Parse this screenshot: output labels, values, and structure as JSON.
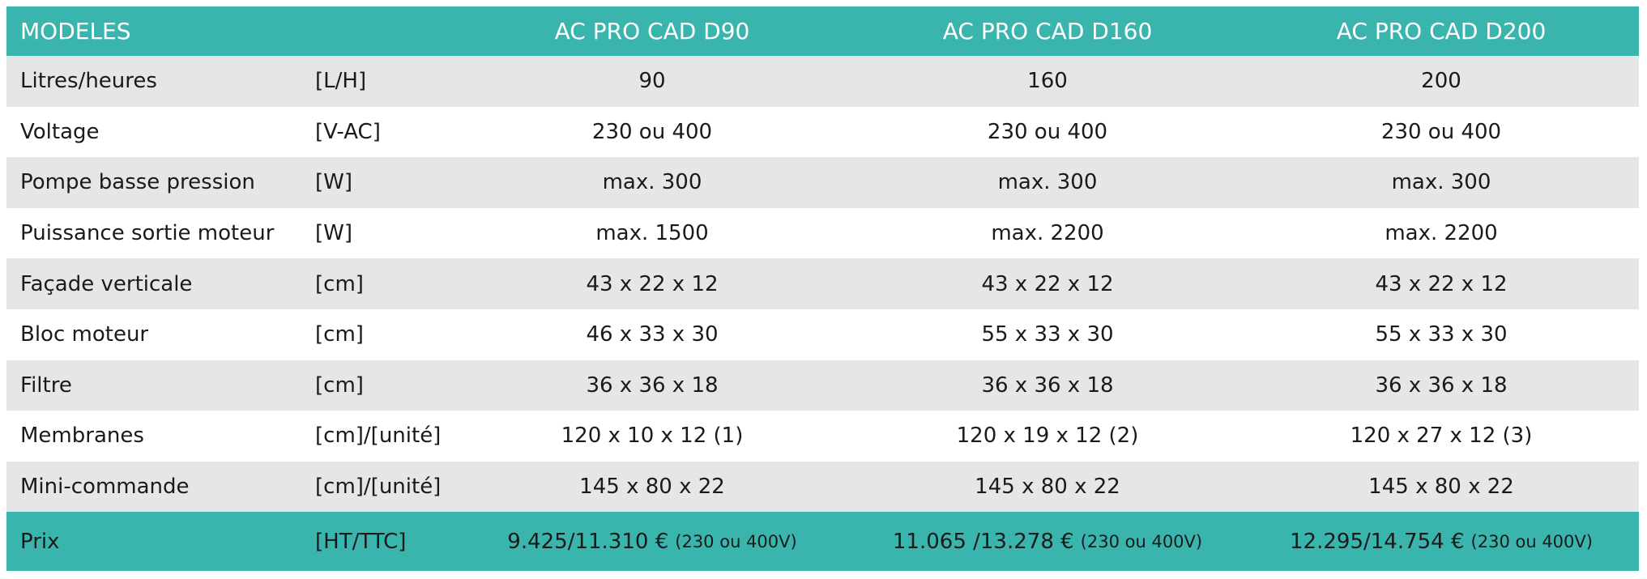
{
  "table": {
    "header": [
      "MODELES",
      "AC PRO CAD D90",
      "AC PRO CAD D160",
      "AC PRO CAD D200"
    ],
    "rows": [
      [
        "Litres/heures",
        "[L/H]",
        "90",
        "160",
        "200"
      ],
      [
        "Voltage",
        "[V-AC]",
        "230 ou 400",
        "230 ou 400",
        "230 ou 400"
      ],
      [
        "Pompe basse pression",
        "[W]",
        "max. 300",
        "max. 300",
        "max. 300"
      ],
      [
        "Puissance sortie moteur",
        "[W]",
        "max. 1500",
        "max. 2200",
        "max. 2200"
      ],
      [
        "Façade verticale",
        "[cm]",
        "43 x 22 x 12",
        "43 x 22 x 12",
        "43 x 22 x 12"
      ],
      [
        "Bloc moteur",
        "[cm]",
        "46 x 33 x 30",
        "55 x 33 x 30",
        "55 x 33 x 30"
      ],
      [
        "Filtre",
        "[cm]",
        "36 x 36 x 18",
        "36 x 36 x 18",
        "36 x 36 x 18"
      ],
      [
        "Membranes",
        "[cm]/[unité]",
        "120 x 10 x 12 (1)",
        "120 x 19 x 12 (2)",
        "120 x 27 x 12 (3)"
      ],
      [
        "Mini-commande",
        "[cm]/[unité]",
        "145 x 80 x 22",
        "145 x 80 x 22",
        "145 x 80 x 22"
      ]
    ],
    "price_row": {
      "label": "Prix",
      "unit": "[HT/TTC]",
      "prices": [
        {
          "price": "9.425/11.310 €",
          "note": "(230 ou 400V)"
        },
        {
          "price": "11.065 /13.278 €",
          "note": "(230 ou 400V)"
        },
        {
          "price": "12.295/14.754 €",
          "note": "(230 ou 400V)"
        }
      ]
    }
  }
}
